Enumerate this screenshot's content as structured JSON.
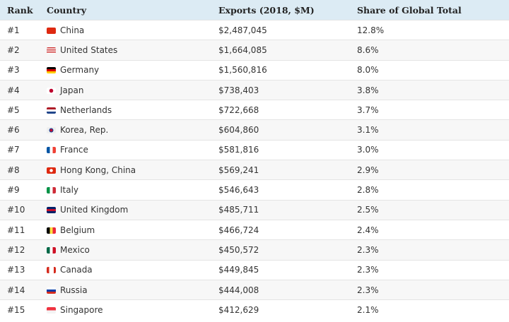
{
  "headers": {
    "rank": "Rank",
    "country": "Country",
    "exports": "Exports (2018, $M)",
    "share": "Share of Global Total"
  },
  "rows": [
    {
      "rank": "#1",
      "country": "China",
      "exports": "$2,487,045",
      "share": "12.8%",
      "flag": "linear-gradient(#de2910,#de2910)"
    },
    {
      "rank": "#2",
      "country": "United States",
      "exports": "$1,664,085",
      "share": "8.6%",
      "flag": "repeating-linear-gradient(#c33 0 1.5px,#fff 1.5px 3px)"
    },
    {
      "rank": "#3",
      "country": "Germany",
      "exports": "$1,560,816",
      "share": "8.0%",
      "flag": "linear-gradient(#000 0 33%,#d00 33% 66%,#fc0 66%)"
    },
    {
      "rank": "#4",
      "country": "Japan",
      "exports": "$738,403",
      "share": "3.8%",
      "flag": "radial-gradient(circle,#bc002d 0 2.5px,#fff 3px)"
    },
    {
      "rank": "#5",
      "country": "Netherlands",
      "exports": "$722,668",
      "share": "3.7%",
      "flag": "linear-gradient(#ae1c28 0 33%,#fff 33% 66%,#21468b 66%)"
    },
    {
      "rank": "#6",
      "country": "Korea, Rep.",
      "exports": "$604,860",
      "share": "3.1%",
      "flag": "radial-gradient(circle,#c60c30 0 2px,#0047a0 2px 3px,#eee 3px)"
    },
    {
      "rank": "#7",
      "country": "France",
      "exports": "$581,816",
      "share": "3.0%",
      "flag": "linear-gradient(90deg,#0055a4 0 33%,#fff 33% 66%,#ef4135 66%)"
    },
    {
      "rank": "#8",
      "country": "Hong Kong, China",
      "exports": "$569,241",
      "share": "2.9%",
      "flag": "radial-gradient(circle,#fff 0 2px,#de2910 2.5px)"
    },
    {
      "rank": "#9",
      "country": "Italy",
      "exports": "$546,643",
      "share": "2.8%",
      "flag": "linear-gradient(90deg,#009246 0 33%,#fff 33% 66%,#ce2b37 66%)"
    },
    {
      "rank": "#10",
      "country": "United Kingdom",
      "exports": "$485,711",
      "share": "2.5%",
      "flag": "linear-gradient(#012169 0 35%,#c8102e 35% 65%,#012169 65%)"
    },
    {
      "rank": "#11",
      "country": "Belgium",
      "exports": "$466,724",
      "share": "2.4%",
      "flag": "linear-gradient(90deg,#000 0 33%,#fae042 33% 66%,#ed2939 66%)"
    },
    {
      "rank": "#12",
      "country": "Mexico",
      "exports": "$450,572",
      "share": "2.3%",
      "flag": "linear-gradient(90deg,#006847 0 33%,#fff 33% 66%,#ce1126 66%)"
    },
    {
      "rank": "#13",
      "country": "Canada",
      "exports": "$449,845",
      "share": "2.3%",
      "flag": "linear-gradient(90deg,#d52b1e 0 25%,#fff 25% 75%,#d52b1e 75%)"
    },
    {
      "rank": "#14",
      "country": "Russia",
      "exports": "$444,008",
      "share": "2.3%",
      "flag": "linear-gradient(#fff 0 33%,#0039a6 33% 66%,#d52b1e 66%)"
    },
    {
      "rank": "#15",
      "country": "Singapore",
      "exports": "$412,629",
      "share": "2.1%",
      "flag": "linear-gradient(#ef3340 0 50%,#f4f4f4 50%)"
    }
  ]
}
